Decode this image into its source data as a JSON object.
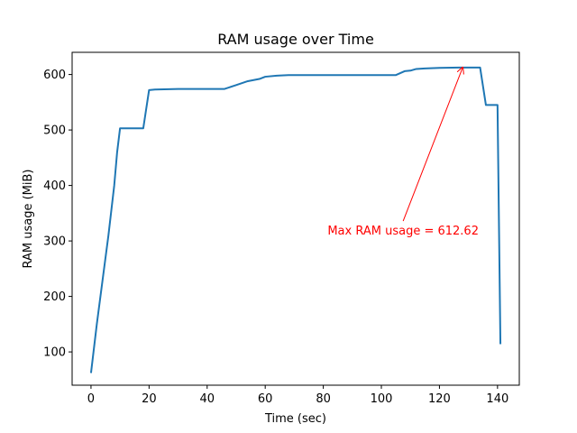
{
  "chart_data": {
    "type": "line",
    "title": "RAM usage over Time",
    "xlabel": "Time (sec)",
    "ylabel": "RAM usage (MiB)",
    "xlim": [
      -6.5,
      147.5
    ],
    "ylim": [
      40,
      640
    ],
    "xticks": [
      0,
      20,
      40,
      60,
      80,
      100,
      120,
      140
    ],
    "yticks": [
      100,
      200,
      300,
      400,
      500,
      600
    ],
    "grid": false,
    "series": [
      {
        "color": "#1f77b4",
        "x": [
          0,
          2,
          4,
          6,
          8,
          9,
          10,
          12,
          14,
          16,
          18,
          20,
          22,
          30,
          40,
          46,
          50,
          54,
          58,
          60,
          64,
          68,
          70,
          80,
          90,
          100,
          105,
          108,
          110,
          112,
          115,
          120,
          128,
          134,
          136,
          139,
          140,
          141
        ],
        "y": [
          62,
          150,
          230,
          310,
          400,
          460,
          503,
          503,
          503,
          503,
          503,
          572,
          573,
          574,
          574,
          574,
          581,
          588,
          592,
          596,
          598,
          599,
          599,
          599,
          599,
          599,
          599,
          606,
          607,
          610,
          611,
          612,
          612.62,
          612.62,
          545,
          545,
          545,
          114
        ]
      }
    ],
    "annotation": {
      "text": "Max RAM usage = 612.62",
      "color": "#ff0000",
      "point": [
        128,
        612.62
      ],
      "text_anchor": [
        107.5,
        318
      ]
    }
  }
}
